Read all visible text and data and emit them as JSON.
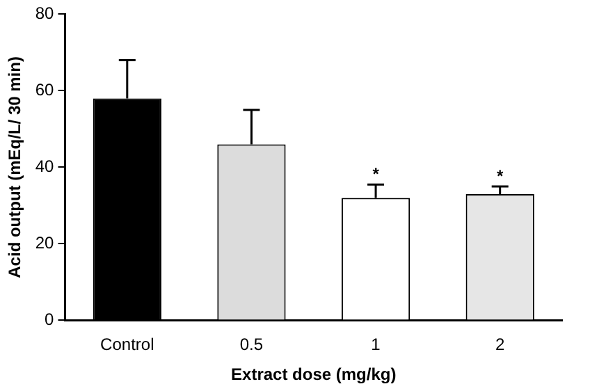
{
  "chart_data": {
    "type": "bar",
    "xlabel": "Extract dose (mg/kg)",
    "ylabel": "Acid output (mEq/L/ 30 min)",
    "categories": [
      "Control",
      "0.5",
      "1",
      "2"
    ],
    "values": [
      58,
      46,
      32,
      33
    ],
    "colors": [
      "#000000",
      "#dcdcdc",
      "#ffffff",
      "#e6e6e6"
    ],
    "errors": [
      [
        58,
        68
      ],
      [
        46,
        55
      ],
      [
        32,
        35.5
      ],
      [
        33,
        35
      ]
    ],
    "annotations": [
      {
        "text": "*",
        "x": "1",
        "y": 35.5
      },
      {
        "text": "*",
        "x": "2",
        "y": 35
      }
    ],
    "ylim": [
      0,
      80
    ],
    "yticks": [
      0,
      20,
      40,
      60,
      80
    ],
    "grid": false,
    "legend": false
  }
}
